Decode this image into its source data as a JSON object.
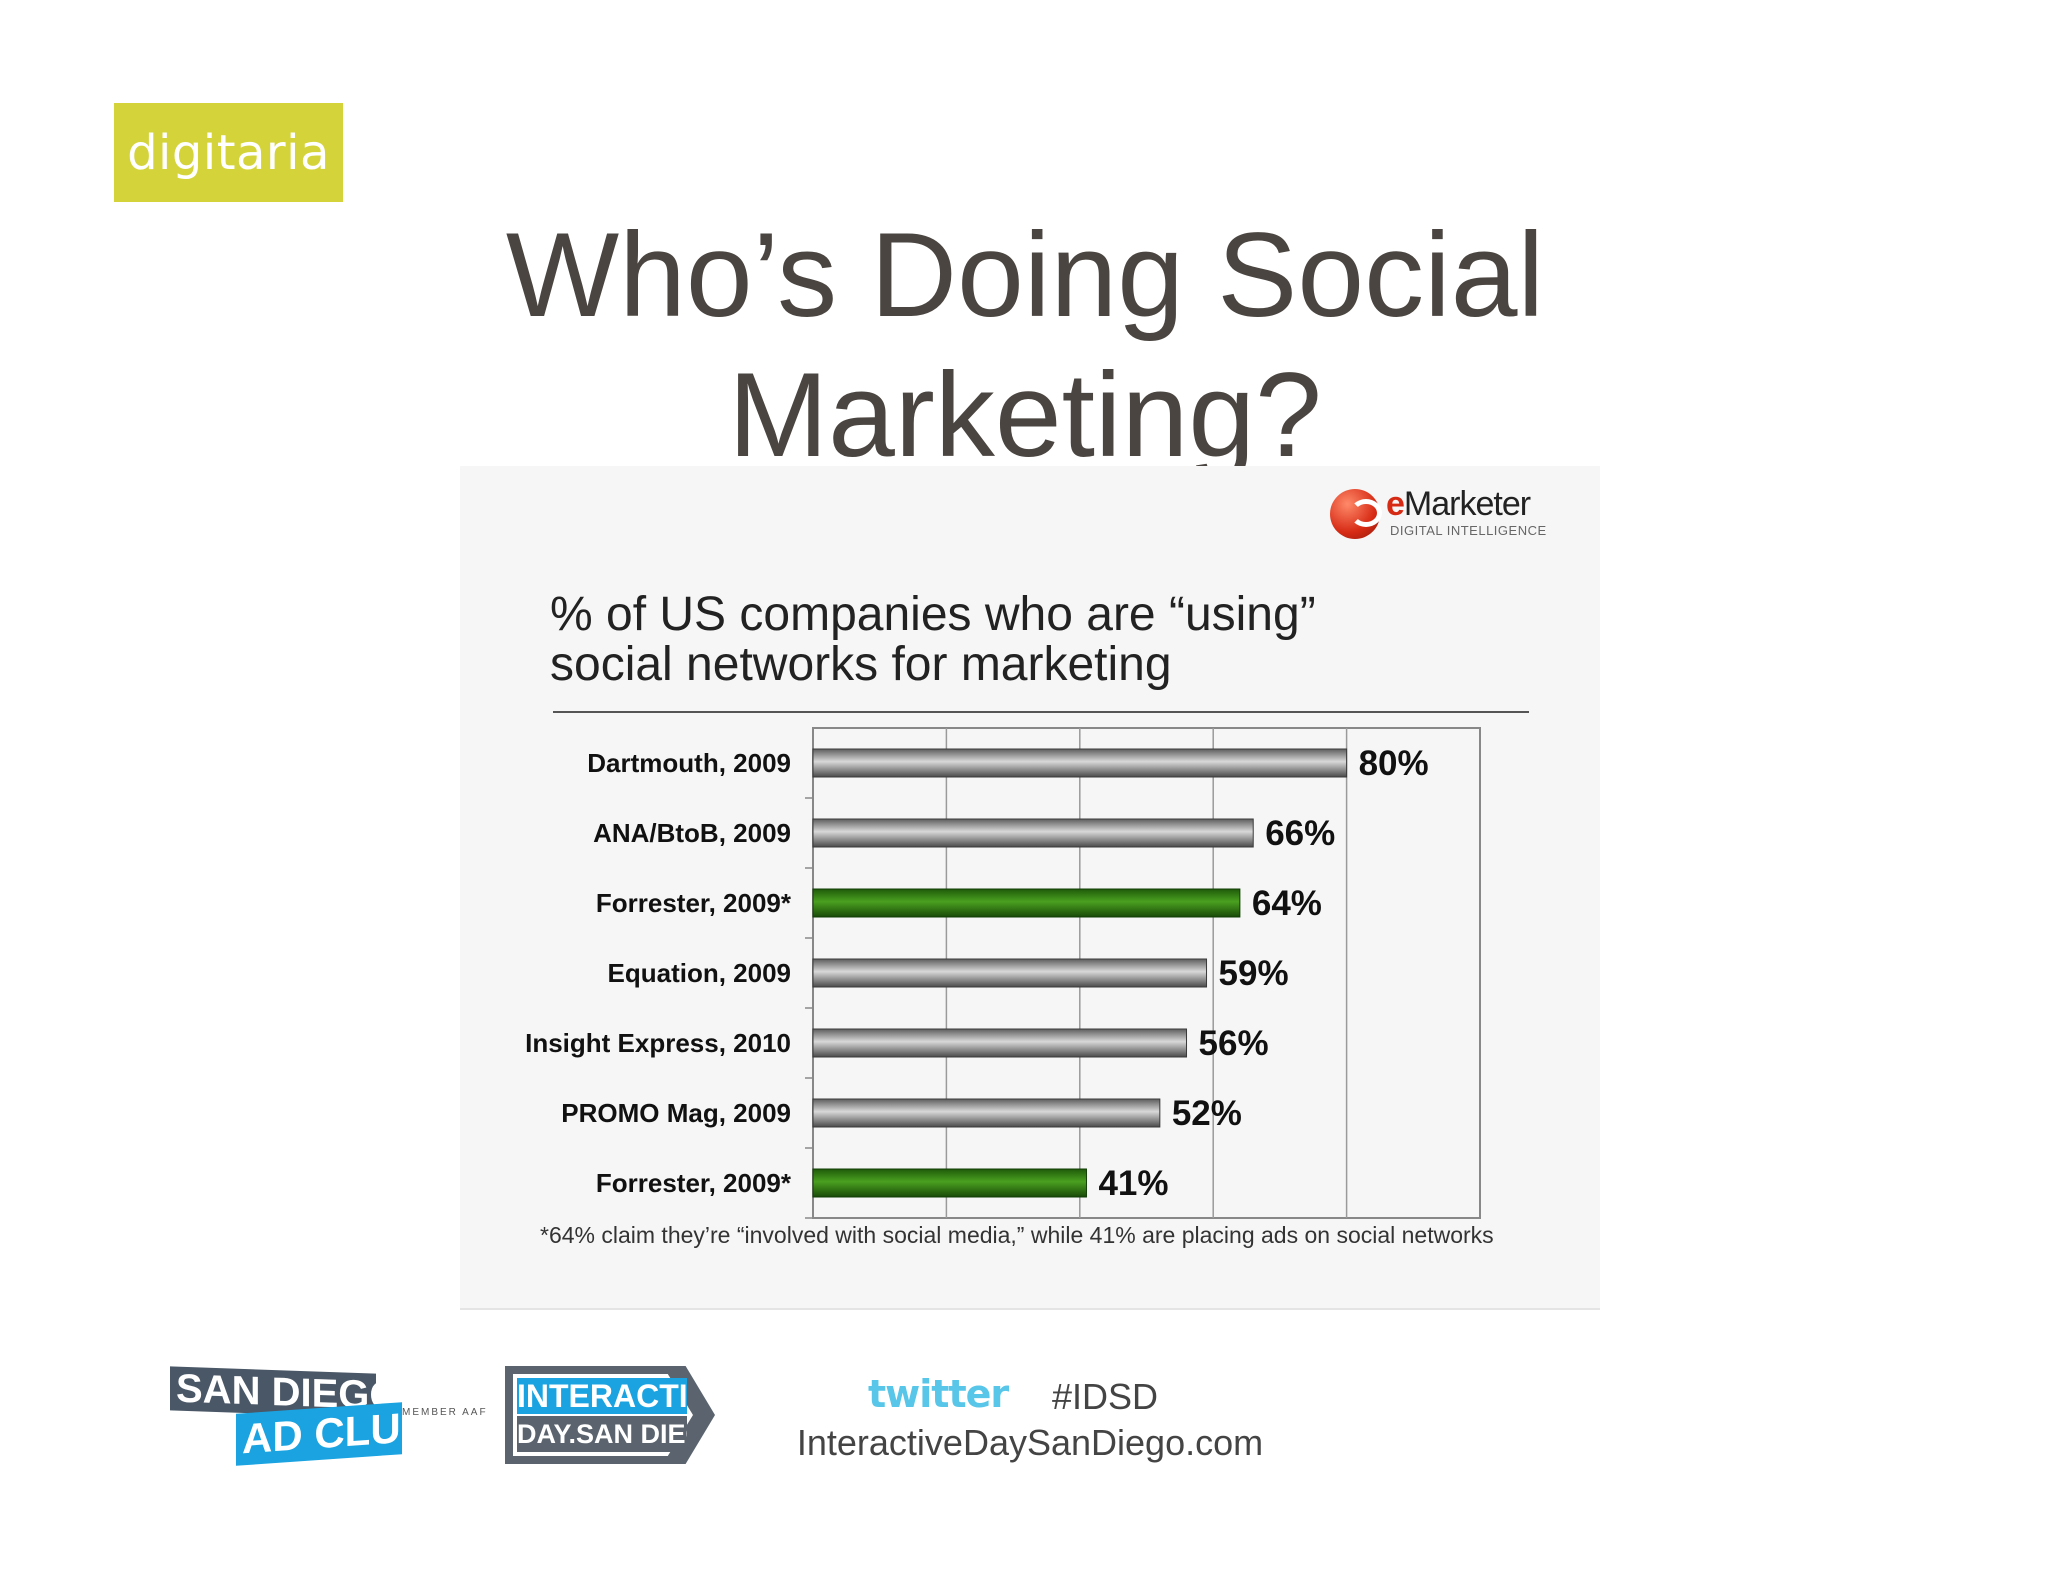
{
  "brand": {
    "logo_text": "digitaria"
  },
  "slide": {
    "title_line1": "Who’s Doing Social",
    "title_line2": "Marketing?"
  },
  "source_logo": {
    "name_e": "e",
    "name_rest": "Marketer",
    "tagline": "DIGITAL INTELLIGENCE"
  },
  "chart_data": {
    "type": "bar",
    "orientation": "horizontal",
    "title_line1": "% of US companies who are “using”",
    "title_line2": "social networks for marketing",
    "categories": [
      "Dartmouth, 2009",
      "ANA/BtoB, 2009",
      "Forrester, 2009*",
      "Equation, 2009",
      "Insight Express, 2010",
      "PROMO Mag, 2009",
      "Forrester, 2009*"
    ],
    "values": [
      80,
      66,
      64,
      59,
      56,
      52,
      41
    ],
    "value_labels": [
      "80%",
      "66%",
      "64%",
      "59%",
      "56%",
      "52%",
      "41%"
    ],
    "highlight": [
      false,
      false,
      true,
      false,
      false,
      false,
      true
    ],
    "colors": {
      "default": "#7a7a7a",
      "highlight": "#2e7d12"
    },
    "xlim": [
      0,
      100
    ],
    "grid": true,
    "footnote": "*64% claim they’re “involved with social media,” while 41% are placing ads on social networks"
  },
  "footer": {
    "club_line1": "SAN DIEGO",
    "club_line2": "AD CLUB",
    "member": "MEMBER AAF",
    "event_line1": "INTERACTIVE",
    "event_line2": "DAY.SAN DIEGO",
    "twitter": "twitter",
    "hashtag": "#IDSD",
    "url": "InteractiveDaySanDiego.com"
  }
}
